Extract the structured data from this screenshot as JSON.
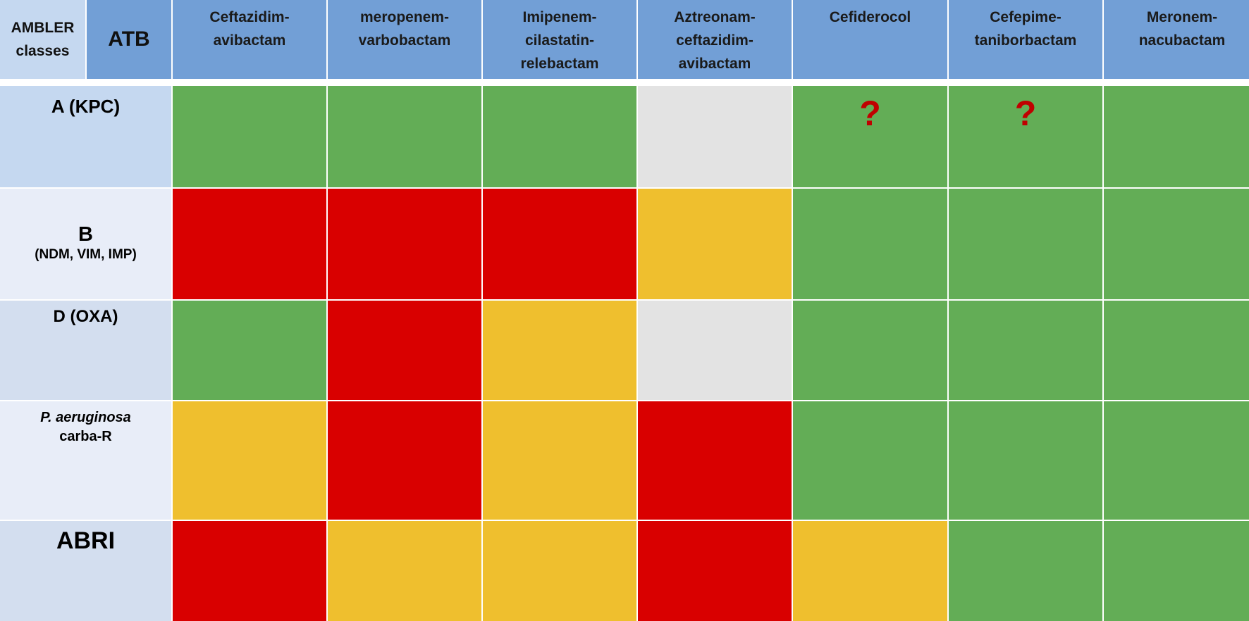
{
  "header": {
    "ambler_label": "AMBLER\nclasses",
    "atb_label": "ATB",
    "columns": [
      "Ceftazidim-\navibactam",
      "meropenem-\nvarbobactam",
      "Imipenem-\ncilastatin-\nrelebactam",
      "Aztreonam-\nceftazidim-\navibactam",
      "Cefiderocol",
      "Cefepime-\ntaniborbactam",
      "Meronem-\nnacubactam"
    ]
  },
  "colors": {
    "green": "#63ad56",
    "red": "#d90000",
    "yellow": "#efbf2e",
    "grey": "#e3e3e3",
    "header_blue": "#729fd6",
    "question_red": "#c00000"
  },
  "rows": [
    {
      "label_lines": [
        {
          "text": "A (KPC)",
          "style": "large"
        }
      ],
      "cells": [
        "green",
        "green",
        "green",
        "grey",
        "green",
        "green",
        "green"
      ],
      "marks": [
        "",
        "",
        "",
        "",
        "?",
        "?",
        ""
      ]
    },
    {
      "label_lines": [
        {
          "text": "B",
          "style": "xlarge"
        },
        {
          "text": "(NDM, VIM, IMP)",
          "style": "small"
        }
      ],
      "cells": [
        "red",
        "red",
        "red",
        "yellow",
        "green",
        "green",
        "green"
      ],
      "marks": [
        "",
        "",
        "",
        "",
        "",
        "",
        ""
      ]
    },
    {
      "label_lines": [
        {
          "text": "D (OXA)",
          "style": "medium"
        }
      ],
      "cells": [
        "green",
        "red",
        "yellow",
        "grey",
        "green",
        "green",
        "green"
      ],
      "marks": [
        "",
        "",
        "",
        "",
        "",
        "",
        ""
      ]
    },
    {
      "label_lines": [
        {
          "text": "P. aeruginosa",
          "style": "italic"
        },
        {
          "text": "carba-R",
          "style": "normal"
        }
      ],
      "cells": [
        "yellow",
        "red",
        "yellow",
        "red",
        "green",
        "green",
        "green"
      ],
      "marks": [
        "",
        "",
        "",
        "",
        "",
        "",
        ""
      ]
    },
    {
      "label_lines": [
        {
          "text": "ABRI",
          "style": "xlarge2"
        }
      ],
      "cells": [
        "red",
        "yellow",
        "yellow",
        "red",
        "yellow",
        "green",
        "green"
      ],
      "marks": [
        "",
        "",
        "",
        "",
        "",
        "",
        ""
      ]
    }
  ]
}
